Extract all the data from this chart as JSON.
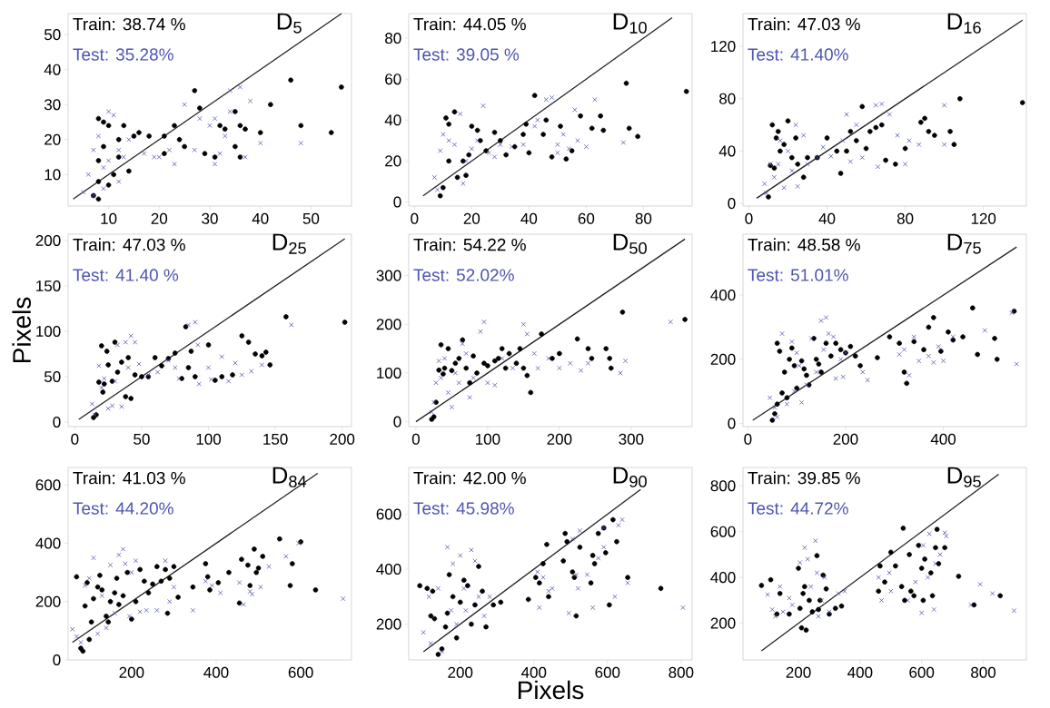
{
  "chart_data": [
    {
      "type": "scatter",
      "title": "D$_{5}$",
      "xlim": [
        2,
        58
      ],
      "ylim": [
        1,
        56
      ],
      "xticks": [
        10,
        20,
        30,
        40,
        50
      ],
      "yticks": [
        10,
        20,
        30,
        40,
        50
      ],
      "series": [
        {
          "name": "Train: 38.74 %",
          "color": "#000000",
          "marker": "circle",
          "x": [
            8,
            9,
            10,
            8,
            9,
            8,
            7,
            8,
            10,
            11,
            12,
            13,
            12,
            14,
            15,
            16,
            18,
            21,
            21,
            23,
            24,
            25,
            27,
            28,
            29,
            31,
            32,
            33,
            35,
            36,
            37,
            35,
            36,
            40,
            42,
            46,
            48,
            54,
            56
          ],
          "values": [
            26,
            25,
            24,
            14,
            18,
            8,
            4,
            3,
            7,
            10,
            20,
            24,
            15,
            11,
            21,
            22,
            21,
            21,
            16,
            24,
            20,
            18,
            34,
            29,
            16,
            15,
            24,
            23,
            28,
            24,
            23,
            18,
            15,
            22,
            30,
            37,
            24,
            22,
            35
          ]
        },
        {
          "name": "Test: 35.28%",
          "color": "#4f56b0",
          "marker": "cross",
          "x": [
            5,
            6,
            7,
            8,
            10,
            11,
            9,
            10,
            12,
            13,
            12,
            14,
            17,
            19,
            20,
            22,
            23,
            25,
            27,
            28,
            30,
            31,
            31,
            32,
            34,
            34,
            33,
            36,
            37,
            38,
            40,
            48,
            7,
            9
          ],
          "values": [
            5,
            10,
            17,
            21,
            28,
            27,
            12,
            14,
            17,
            15,
            8,
            20,
            16,
            15,
            15,
            17,
            13,
            30,
            17,
            26,
            24,
            26,
            13,
            16,
            28,
            34,
            21,
            35,
            15,
            31,
            19,
            19,
            4,
            6
          ]
        },
        {
          "type": "line",
          "color": "#222222",
          "x": [
            3,
            56
          ],
          "values": [
            3,
            56
          ]
        }
      ]
    },
    {
      "type": "scatter",
      "title": "D$_{10}$",
      "xlim": [
        -2,
        97
      ],
      "ylim": [
        -2,
        92
      ],
      "xticks": [
        0,
        20,
        40,
        60,
        80
      ],
      "yticks": [
        0,
        20,
        40,
        60,
        80
      ],
      "series": [
        {
          "name": "Train: 44.05 %",
          "color": "#000000",
          "marker": "circle",
          "x": [
            9,
            10,
            11,
            12,
            12,
            14,
            15,
            17,
            18,
            19,
            20,
            22,
            23,
            25,
            28,
            30,
            32,
            35,
            38,
            39,
            40,
            42,
            45,
            46,
            48,
            51,
            53,
            55,
            58,
            62,
            65,
            66,
            74,
            75,
            78,
            95
          ],
          "values": [
            3,
            7,
            41,
            38,
            20,
            44,
            12,
            20,
            13,
            23,
            37,
            35,
            30,
            25,
            34,
            30,
            23,
            27,
            33,
            38,
            24,
            52,
            33,
            40,
            22,
            37,
            21,
            25,
            42,
            36,
            42,
            35,
            58,
            36,
            32,
            54
          ]
        },
        {
          "name": "Test: 39.05 %",
          "color": "#4f56b0",
          "marker": "cross",
          "x": [
            7,
            8,
            9,
            10,
            12,
            14,
            16,
            17,
            18,
            20,
            22,
            24,
            26,
            28,
            30,
            34,
            38,
            42,
            43,
            46,
            48,
            50,
            50,
            52,
            54,
            56,
            57,
            60,
            63,
            73
          ],
          "values": [
            12,
            6,
            25,
            33,
            30,
            28,
            43,
            9,
            20,
            26,
            30,
            47,
            24,
            22,
            28,
            27,
            28,
            37,
            40,
            50,
            51,
            28,
            24,
            33,
            26,
            45,
            30,
            27,
            50,
            29
          ]
        },
        {
          "type": "line",
          "color": "#222222",
          "x": [
            3,
            90
          ],
          "values": [
            3,
            90
          ]
        }
      ]
    },
    {
      "type": "scatter",
      "title": "D$_{16}$",
      "xlim": [
        -3,
        142
      ],
      "ylim": [
        -2,
        145
      ],
      "xticks": [
        0,
        40,
        80,
        120
      ],
      "yticks": [
        0,
        40,
        80,
        120
      ],
      "series": [
        {
          "name": "Train: 47.03 %",
          "color": "#000000",
          "marker": "circle",
          "x": [
            10,
            11,
            12,
            13,
            14,
            15,
            16,
            18,
            20,
            22,
            24,
            25,
            28,
            30,
            35,
            40,
            45,
            47,
            50,
            52,
            55,
            58,
            60,
            62,
            65,
            68,
            70,
            75,
            80,
            88,
            90,
            92,
            95,
            103,
            105,
            108,
            140
          ],
          "values": [
            5,
            29,
            60,
            27,
            50,
            55,
            40,
            45,
            63,
            35,
            50,
            30,
            20,
            35,
            35,
            50,
            40,
            23,
            40,
            55,
            48,
            74,
            42,
            55,
            58,
            60,
            33,
            30,
            42,
            62,
            65,
            55,
            52,
            55,
            45,
            80,
            77
          ]
        },
        {
          "name": "Test: 41.40%",
          "color": "#4f56b0",
          "marker": "cross",
          "x": [
            8,
            9,
            11,
            13,
            15,
            16,
            18,
            20,
            22,
            24,
            25,
            28,
            30,
            35,
            38,
            42,
            48,
            50,
            52,
            55,
            58,
            65,
            66,
            68,
            72,
            76,
            80,
            82,
            87,
            100,
            100
          ],
          "values": [
            15,
            8,
            30,
            20,
            30,
            48,
            12,
            40,
            25,
            60,
            13,
            52,
            30,
            35,
            43,
            36,
            48,
            68,
            32,
            60,
            35,
            75,
            28,
            76,
            68,
            52,
            30,
            48,
            45,
            75,
            45
          ]
        },
        {
          "type": "line",
          "color": "#222222",
          "x": [
            4,
            140
          ],
          "values": [
            4,
            140
          ]
        }
      ]
    },
    {
      "type": "scatter",
      "title": "D$_{25}$",
      "ylabel": "Pixels",
      "xlim": [
        -5,
        207
      ],
      "ylim": [
        -5,
        207
      ],
      "xticks": [
        0,
        50,
        100,
        150,
        200
      ],
      "yticks": [
        0,
        50,
        100,
        150,
        200
      ],
      "series": [
        {
          "name": "Train: 47.03 %",
          "color": "#000000",
          "marker": "circle",
          "x": [
            14,
            16,
            18,
            20,
            21,
            22,
            24,
            25,
            28,
            30,
            32,
            35,
            38,
            40,
            42,
            45,
            50,
            55,
            60,
            65,
            70,
            75,
            80,
            83,
            85,
            87,
            90,
            100,
            105,
            110,
            118,
            125,
            130,
            135,
            140,
            143,
            146,
            158,
            202
          ],
          "values": [
            5,
            8,
            44,
            84,
            33,
            42,
            78,
            63,
            45,
            88,
            55,
            66,
            28,
            71,
            26,
            52,
            50,
            50,
            71,
            62,
            70,
            76,
            48,
            105,
            60,
            78,
            50,
            85,
            46,
            50,
            52,
            95,
            88,
            75,
            73,
            77,
            63,
            116,
            110
          ]
        },
        {
          "name": "Test: 41.40 %",
          "color": "#4f56b0",
          "marker": "cross",
          "x": [
            13,
            15,
            18,
            20,
            22,
            25,
            28,
            30,
            32,
            35,
            38,
            40,
            42,
            45,
            48,
            55,
            62,
            70,
            75,
            78,
            85,
            90,
            92,
            93,
            100,
            102,
            110,
            115,
            120,
            125,
            132,
            140,
            162
          ],
          "values": [
            20,
            8,
            62,
            38,
            48,
            15,
            18,
            45,
            85,
            17,
            88,
            60,
            95,
            88,
            64,
            52,
            55,
            68,
            60,
            48,
            107,
            110,
            85,
            42,
            60,
            47,
            72,
            45,
            65,
            52,
            56,
            63,
            107
          ]
        },
        {
          "type": "line",
          "color": "#222222",
          "x": [
            3,
            202
          ],
          "values": [
            3,
            202
          ]
        }
      ]
    },
    {
      "type": "scatter",
      "title": "D$_{50}$",
      "xlim": [
        -10,
        385
      ],
      "ylim": [
        -10,
        385
      ],
      "xticks": [
        0,
        100,
        200,
        300
      ],
      "yticks": [
        0,
        100,
        200,
        300
      ],
      "series": [
        {
          "name": "Train: 54.22 %",
          "color": "#000000",
          "marker": "circle",
          "x": [
            22,
            25,
            28,
            32,
            35,
            38,
            40,
            45,
            50,
            55,
            60,
            65,
            70,
            75,
            80,
            85,
            95,
            100,
            110,
            115,
            120,
            125,
            130,
            140,
            145,
            150,
            155,
            160,
            175,
            190,
            200,
            225,
            240,
            245,
            265,
            270,
            272,
            288,
            375
          ],
          "values": [
            5,
            10,
            40,
            106,
            158,
            98,
            110,
            150,
            105,
            120,
            130,
            168,
            110,
            80,
            135,
            100,
            120,
            115,
            125,
            130,
            150,
            110,
            140,
            120,
            150,
            110,
            95,
            60,
            180,
            130,
            140,
            170,
            150,
            130,
            150,
            130,
            110,
            225,
            210
          ]
        },
        {
          "name": "Test: 52.02%",
          "color": "#4f56b0",
          "marker": "cross",
          "x": [
            22,
            25,
            28,
            32,
            35,
            40,
            45,
            50,
            55,
            60,
            65,
            70,
            75,
            80,
            90,
            95,
            100,
            110,
            120,
            135,
            150,
            155,
            165,
            170,
            185,
            200,
            215,
            230,
            240,
            285,
            292,
            355
          ],
          "values": [
            20,
            40,
            80,
            125,
            90,
            130,
            60,
            30,
            100,
            80,
            160,
            140,
            50,
            90,
            185,
            205,
            80,
            75,
            130,
            110,
            200,
            180,
            140,
            110,
            130,
            110,
            120,
            105,
            120,
            100,
            125,
            205
          ]
        },
        {
          "type": "line",
          "color": "#222222",
          "x": [
            0,
            375
          ],
          "values": [
            0,
            375
          ]
        }
      ]
    },
    {
      "type": "scatter",
      "title": "D$_{75}$",
      "xlim": [
        -10,
        570
      ],
      "ylim": [
        -10,
        590
      ],
      "xticks": [
        0,
        200,
        400
      ],
      "yticks": [
        0,
        200,
        400
      ],
      "series": [
        {
          "name": "Train: 48.58 %",
          "color": "#000000",
          "marker": "circle",
          "x": [
            50,
            55,
            60,
            60,
            65,
            70,
            75,
            80,
            85,
            90,
            95,
            100,
            110,
            115,
            120,
            125,
            135,
            140,
            145,
            150,
            160,
            170,
            180,
            190,
            200,
            210,
            220,
            230,
            265,
            290,
            310,
            320,
            325,
            340,
            360,
            370,
            380,
            395,
            410,
            420,
            440,
            460,
            470,
            505,
            510,
            545
          ],
          "values": [
            10,
            30,
            60,
            250,
            225,
            95,
            160,
            80,
            200,
            235,
            180,
            110,
            195,
            170,
            150,
            120,
            265,
            200,
            185,
            160,
            250,
            210,
            250,
            230,
            220,
            240,
            210,
            180,
            205,
            270,
            250,
            160,
            125,
            255,
            230,
            300,
            330,
            225,
            285,
            260,
            270,
            360,
            215,
            265,
            200,
            350
          ]
        },
        {
          "name": "Test: 51.01%",
          "color": "#4f56b0",
          "marker": "cross",
          "x": [
            45,
            55,
            60,
            70,
            80,
            90,
            95,
            100,
            105,
            110,
            120,
            130,
            140,
            150,
            155,
            160,
            165,
            175,
            180,
            190,
            195,
            200,
            235,
            245,
            310,
            320,
            330,
            340,
            350,
            370,
            380,
            390,
            400,
            420,
            485,
            540,
            550
          ],
          "values": [
            80,
            50,
            20,
            280,
            60,
            255,
            100,
            220,
            180,
            65,
            120,
            265,
            160,
            320,
            230,
            330,
            280,
            270,
            140,
            200,
            145,
            220,
            160,
            135,
            215,
            230,
            150,
            270,
            195,
            210,
            190,
            240,
            195,
            270,
            290,
            345,
            185
          ]
        },
        {
          "type": "line",
          "color": "#222222",
          "x": [
            10,
            550
          ],
          "values": [
            10,
            550
          ]
        }
      ]
    },
    {
      "type": "scatter",
      "title": "D$_{84}$",
      "xlim": [
        50,
        720
      ],
      "ylim": [
        0,
        660
      ],
      "xticks": [
        200,
        400,
        600
      ],
      "yticks": [
        0,
        200,
        400,
        600
      ],
      "series": [
        {
          "name": "Train: 41.03 %",
          "color": "#000000",
          "marker": "circle",
          "x": [
            70,
            80,
            85,
            90,
            95,
            100,
            105,
            110,
            120,
            125,
            130,
            140,
            145,
            150,
            160,
            165,
            170,
            180,
            190,
            200,
            210,
            220,
            230,
            240,
            250,
            260,
            270,
            280,
            285,
            290,
            300,
            310,
            345,
            375,
            380,
            385,
            405,
            430,
            455,
            460,
            475,
            480,
            490,
            495,
            500,
            510,
            550,
            575,
            580,
            600,
            635
          ],
          "values": [
            285,
            40,
            30,
            185,
            265,
            70,
            130,
            210,
            250,
            290,
            240,
            150,
            130,
            200,
            230,
            280,
            190,
            220,
            300,
            140,
            200,
            310,
            270,
            230,
            260,
            320,
            270,
            310,
            160,
            280,
            320,
            215,
            250,
            330,
            285,
            240,
            265,
            300,
            195,
            345,
            325,
            255,
            380,
            300,
            315,
            355,
            415,
            255,
            330,
            405,
            240
          ]
        },
        {
          "name": "Test: 44.20%",
          "color": "#4f56b0",
          "marker": "cross",
          "x": [
            60,
            70,
            80,
            90,
            100,
            110,
            120,
            130,
            140,
            150,
            160,
            170,
            180,
            185,
            195,
            200,
            210,
            220,
            235,
            260,
            280,
            290,
            300,
            345,
            375,
            390,
            410,
            455,
            465,
            480,
            485,
            505,
            525,
            565,
            595,
            700
          ],
          "values": [
            105,
            80,
            60,
            255,
            280,
            350,
            90,
            220,
            110,
            325,
            160,
            360,
            380,
            330,
            150,
            300,
            340,
            165,
            170,
            170,
            340,
            200,
            250,
            170,
            270,
            255,
            230,
            265,
            190,
            235,
            225,
            250,
            320,
            355,
            400,
            210
          ]
        },
        {
          "type": "line",
          "color": "#222222",
          "x": [
            60,
            640
          ],
          "values": [
            60,
            640
          ]
        }
      ]
    },
    {
      "type": "scatter",
      "title": "D$_{90}$",
      "xlabel": "Pixels",
      "xlim": [
        60,
        830
      ],
      "ylim": [
        70,
        770
      ],
      "xticks": [
        200,
        400,
        600,
        800
      ],
      "yticks": [
        200,
        400,
        600
      ],
      "series": [
        {
          "name": "Train: 42.00 %",
          "color": "#000000",
          "marker": "circle",
          "x": [
            90,
            110,
            120,
            125,
            130,
            140,
            150,
            160,
            165,
            170,
            180,
            190,
            200,
            210,
            220,
            230,
            240,
            250,
            260,
            270,
            290,
            310,
            385,
            405,
            415,
            425,
            435,
            440,
            480,
            485,
            490,
            505,
            510,
            515,
            525,
            555,
            560,
            565,
            575,
            590,
            595,
            605,
            615,
            625,
            655,
            745
          ],
          "values": [
            340,
            330,
            230,
            320,
            220,
            90,
            110,
            190,
            240,
            380,
            300,
            150,
            280,
            360,
            340,
            200,
            270,
            410,
            320,
            190,
            270,
            280,
            290,
            370,
            350,
            420,
            490,
            300,
            430,
            530,
            500,
            390,
            370,
            230,
            480,
            350,
            450,
            420,
            530,
            550,
            460,
            270,
            580,
            500,
            370,
            330
          ]
        },
        {
          "name": "Test: 45.98%",
          "color": "#4f56b0",
          "marker": "cross",
          "x": [
            100,
            115,
            120,
            140,
            150,
            165,
            175,
            180,
            190,
            200,
            210,
            215,
            230,
            240,
            250,
            265,
            280,
            410,
            415,
            425,
            440,
            450,
            495,
            505,
            515,
            520,
            525,
            545,
            560,
            575,
            590,
            590,
            620,
            630,
            640,
            655,
            805
          ],
          "values": [
            170,
            300,
            130,
            330,
            100,
            480,
            250,
            420,
            200,
            450,
            330,
            250,
            470,
            430,
            300,
            230,
            300,
            390,
            260,
            370,
            320,
            330,
            240,
            510,
            380,
            330,
            540,
            380,
            260,
            440,
            550,
            480,
            300,
            560,
            580,
            350,
            260
          ]
        },
        {
          "type": "line",
          "color": "#222222",
          "x": [
            100,
            690
          ],
          "values": [
            100,
            690
          ]
        }
      ]
    },
    {
      "type": "scatter",
      "title": "D$_{95}$",
      "xlim": [
        20,
        940
      ],
      "ylim": [
        40,
        880
      ],
      "xticks": [
        200,
        400,
        600,
        800
      ],
      "yticks": [
        200,
        400,
        600,
        800
      ],
      "series": [
        {
          "name": "Train: 39.85 %",
          "color": "#000000",
          "marker": "circle",
          "x": [
            80,
            110,
            130,
            140,
            170,
            200,
            205,
            210,
            215,
            220,
            225,
            235,
            245,
            260,
            265,
            270,
            280,
            290,
            300,
            320,
            340,
            460,
            465,
            480,
            500,
            515,
            535,
            540,
            545,
            560,
            565,
            575,
            590,
            600,
            605,
            610,
            630,
            635,
            645,
            650,
            655,
            675,
            720,
            770,
            855
          ],
          "values": [
            365,
            390,
            240,
            330,
            240,
            440,
            265,
            180,
            330,
            360,
            170,
            300,
            250,
            495,
            260,
            300,
            410,
            350,
            240,
            265,
            275,
            340,
            450,
            380,
            510,
            450,
            360,
            615,
            300,
            500,
            340,
            320,
            540,
            440,
            300,
            480,
            420,
            320,
            530,
            610,
            460,
            530,
            405,
            280,
            320
          ]
        },
        {
          "name": "Test: 44.72%",
          "color": "#4f56b0",
          "marker": "cross",
          "x": [
            100,
            115,
            125,
            140,
            150,
            170,
            180,
            205,
            220,
            230,
            240,
            255,
            260,
            265,
            275,
            285,
            300,
            330,
            350,
            460,
            470,
            495,
            500,
            555,
            580,
            600,
            605,
            620,
            625,
            640,
            645,
            660,
            675,
            680,
            760,
            790,
            830,
            900
          ],
          "values": [
            325,
            260,
            230,
            360,
            250,
            310,
            280,
            465,
            530,
            480,
            360,
            560,
            420,
            230,
            300,
            400,
            250,
            330,
            340,
            400,
            300,
            420,
            340,
            300,
            380,
            245,
            540,
            400,
            590,
            260,
            460,
            500,
            595,
            580,
            280,
            370,
            330,
            255
          ]
        },
        {
          "type": "line",
          "color": "#222222",
          "x": [
            80,
            850
          ],
          "values": [
            80,
            850
          ]
        }
      ]
    }
  ]
}
